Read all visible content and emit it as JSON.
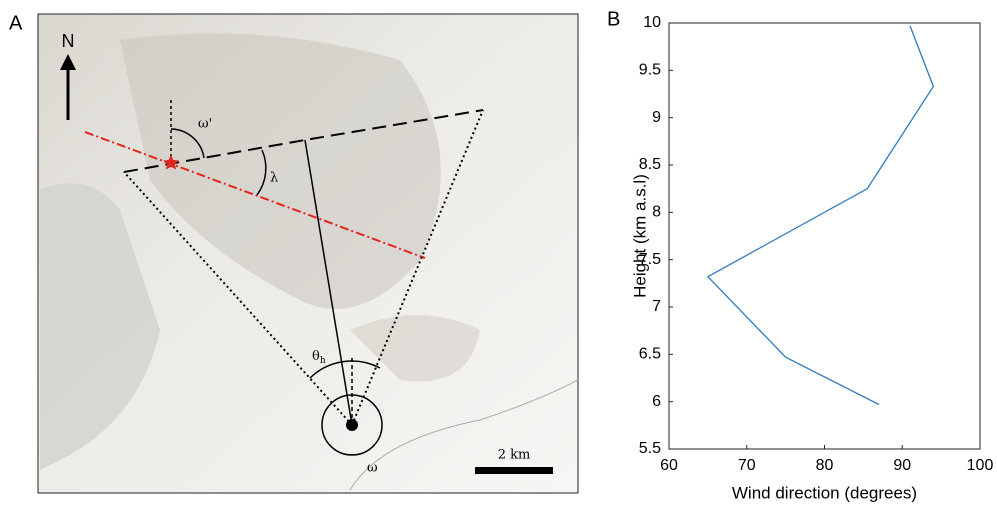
{
  "panel_a": {
    "label": "A",
    "north": "N",
    "omega_prime": "ω'",
    "lambda": "λ",
    "theta": "θ",
    "theta_sub": "h",
    "omega": "ω",
    "scale_bar": "2 km"
  },
  "chart_data": {
    "type": "line",
    "panel_label": "B",
    "xlabel": "Wind direction (degrees)",
    "ylabel": "Height (km a.s.l)",
    "x": [
      87,
      75,
      65,
      85.5,
      94,
      91
    ],
    "values": [
      5.97,
      6.47,
      7.32,
      8.25,
      9.33,
      9.97
    ],
    "color": "#2f7bbf",
    "xlim": [
      60,
      100
    ],
    "xticks": [
      60,
      70,
      80,
      90,
      100
    ],
    "ylim": [
      5.5,
      10
    ],
    "yticks": [
      5.5,
      6,
      6.5,
      7,
      7.5,
      8,
      8.5,
      9,
      9.5,
      10
    ]
  }
}
